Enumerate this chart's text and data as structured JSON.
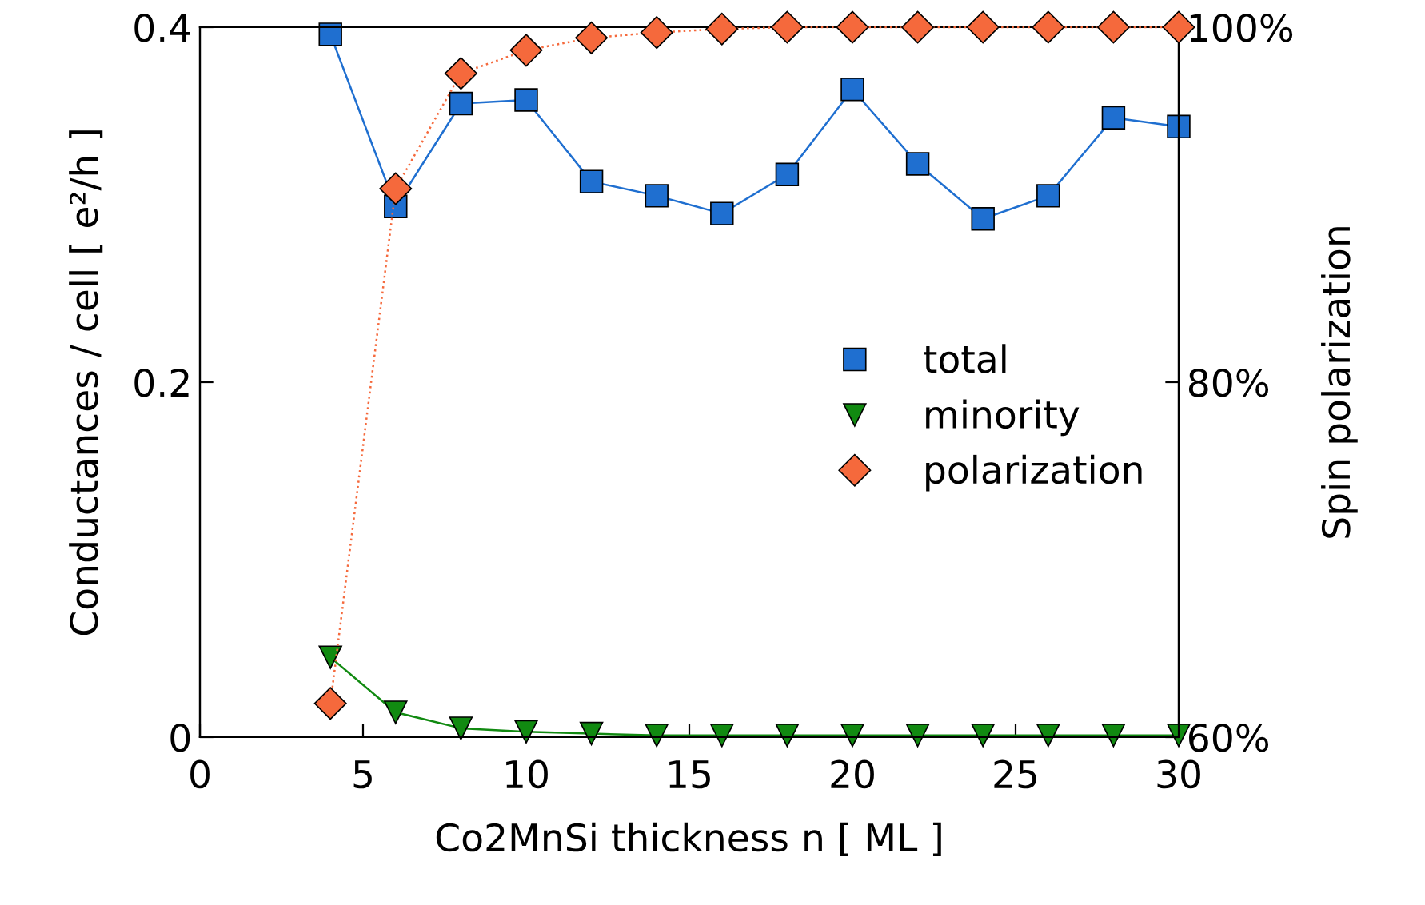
{
  "chart_data": {
    "type": "line",
    "xlabel": "Co2MnSi thickness n [ ML ]",
    "ylabel": "Conductances / cell [ e²/h ]",
    "y2label": "Spin polarization",
    "x": [
      4,
      6,
      8,
      10,
      12,
      14,
      16,
      18,
      20,
      22,
      24,
      26,
      28,
      30
    ],
    "xlim": [
      0,
      30
    ],
    "xticks": [
      0,
      5,
      10,
      15,
      20,
      25,
      30
    ],
    "ylim": [
      0,
      0.4
    ],
    "yticks": [
      {
        "value": 0,
        "label": "0"
      },
      0.2,
      0.4
    ],
    "y2lim": [
      60,
      100
    ],
    "y2ticks": [
      {
        "value": 60,
        "label": "60%"
      },
      {
        "value": 80,
        "label": "80%"
      },
      {
        "value": 100,
        "label": "100%"
      }
    ],
    "grid": false,
    "legend": "right",
    "series": [
      {
        "name": "total",
        "color": "#1f6fd0",
        "marker": "square",
        "line_style": "solid",
        "values": [
          0.396,
          0.299,
          0.357,
          0.359,
          0.313,
          0.305,
          0.295,
          0.317,
          0.365,
          0.323,
          0.292,
          0.305,
          0.349,
          0.344
        ]
      },
      {
        "name": "minority",
        "color": "#118a11",
        "marker": "triangle",
        "line_style": "solid",
        "values": [
          0.045,
          0.014,
          0.005,
          0.003,
          0.002,
          0.001,
          0.001,
          0.001,
          0.001,
          0.001,
          0.001,
          0.001,
          0.001,
          0.001
        ]
      },
      {
        "name": "polarization",
        "color": "#f5693c",
        "marker": "diamond",
        "line_style": "dotted",
        "axis": "y2",
        "values": [
          61.9,
          90.9,
          97.4,
          98.7,
          99.4,
          99.7,
          99.9,
          100,
          100,
          100,
          100,
          100,
          100,
          100
        ]
      }
    ]
  }
}
